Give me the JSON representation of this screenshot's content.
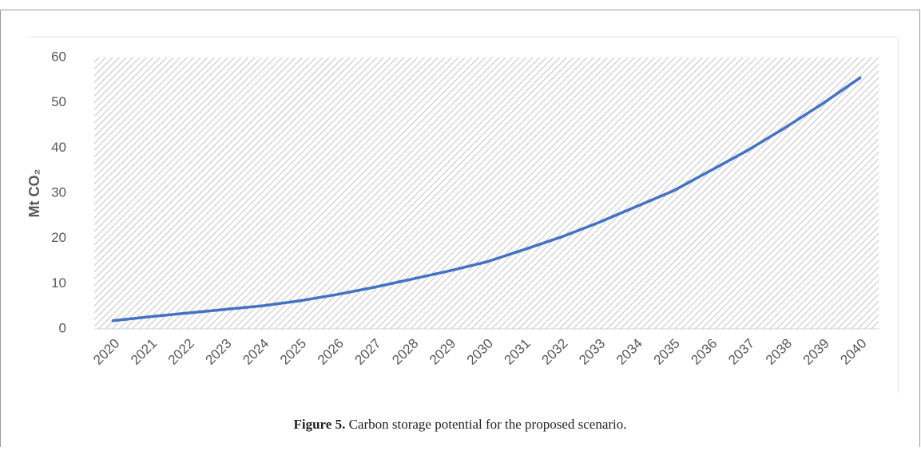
{
  "chart_data": {
    "type": "line",
    "y_label": "Mt CO₂",
    "categories": [
      "2020",
      "2021",
      "2022",
      "2023",
      "2024",
      "2025",
      "2026",
      "2027",
      "2028",
      "2029",
      "2030",
      "2031",
      "2032",
      "2033",
      "2034",
      "2035",
      "2036",
      "2037",
      "2038",
      "2039",
      "2040"
    ],
    "values": [
      1.8,
      2.7,
      3.5,
      4.3,
      5.1,
      6.2,
      7.6,
      9.2,
      11,
      12.8,
      14.8,
      17.5,
      20.3,
      23.5,
      27,
      30.5,
      35,
      39.5,
      44.5,
      49.8,
      55.5
    ],
    "color": "#4472c4",
    "ylim": [
      0,
      60
    ],
    "yticks": [
      0,
      10,
      20,
      30,
      40,
      50,
      60
    ],
    "hatched_background": true
  },
  "caption": {
    "label": "Figure 5.",
    "text": "Carbon storage potential for the proposed scenario."
  }
}
